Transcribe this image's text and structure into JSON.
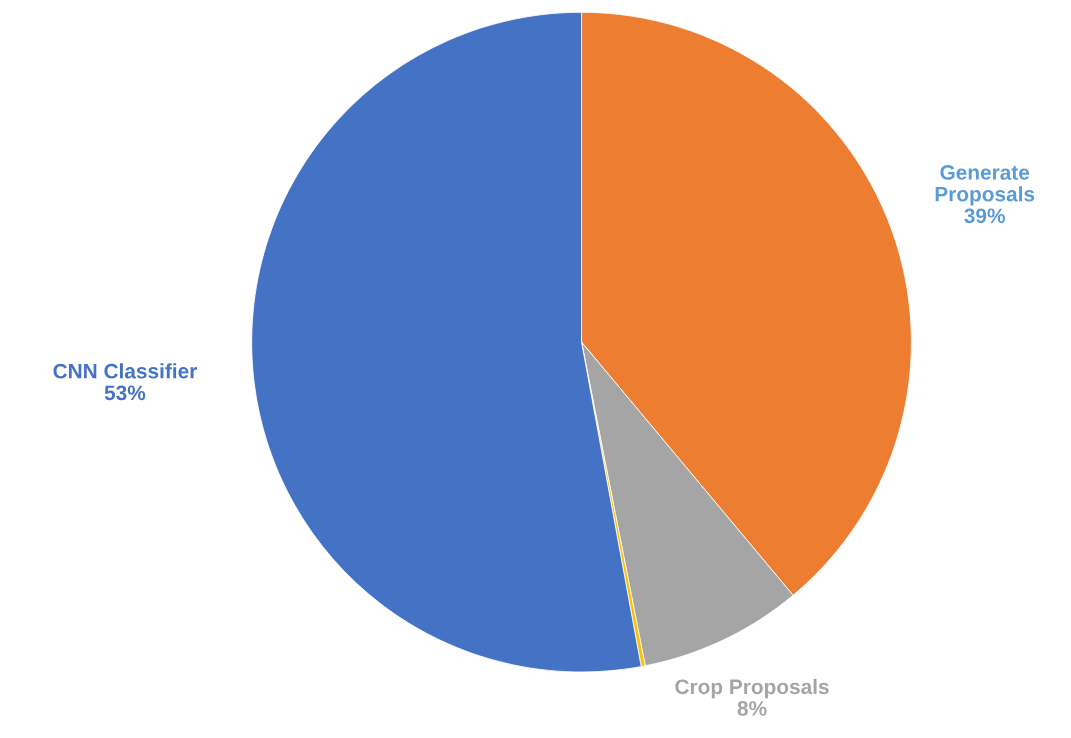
{
  "chart_data": {
    "type": "pie",
    "categories": [
      "Generate\nProposals",
      "Crop Proposals",
      null,
      "CNN Classifier"
    ],
    "values": [
      39,
      8,
      0.2,
      53
    ],
    "colors": [
      "#ed7d31",
      "#a5a5a5",
      "#ffc000",
      "#4472c4"
    ],
    "value_labels": [
      "39%",
      "8%",
      null,
      "53%"
    ],
    "legend": false
  }
}
